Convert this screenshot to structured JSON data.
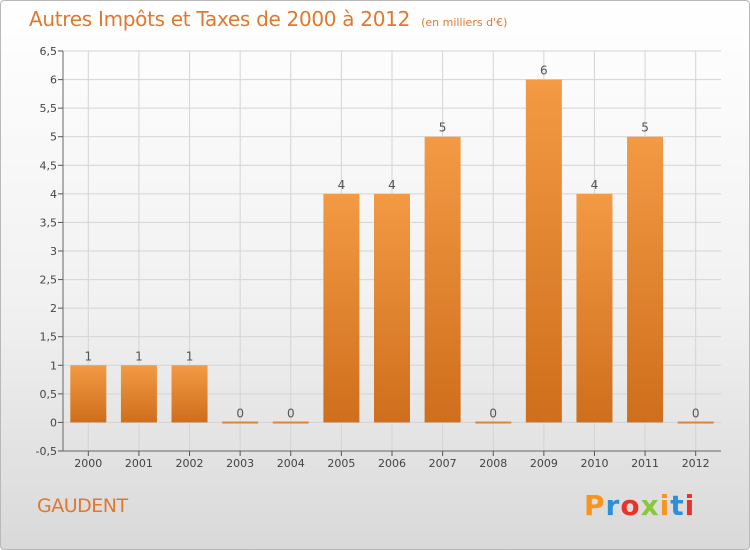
{
  "header": {
    "title": "Autres Impôts et Taxes de 2000 à 2012",
    "subtitle": "(en milliers d'€)"
  },
  "footer": {
    "commune": "GAUDENT",
    "logo_text": "Proxiti",
    "logo_colors": [
      "#f7941d",
      "#2e8fd6",
      "#e8332a",
      "#8cc63f",
      "#f7941d",
      "#2e8fd6",
      "#e8332a"
    ]
  },
  "chart_data": {
    "type": "bar",
    "categories": [
      "2000",
      "2001",
      "2002",
      "2003",
      "2004",
      "2005",
      "2006",
      "2007",
      "2008",
      "2009",
      "2010",
      "2011",
      "2012"
    ],
    "values": [
      1,
      1,
      1,
      0,
      0,
      4,
      4,
      5,
      0,
      6,
      4,
      5,
      0
    ],
    "data_labels": [
      "1",
      "1",
      "1",
      "0",
      "0",
      "4",
      "4",
      "5",
      "0",
      "6",
      "4",
      "5",
      "0"
    ],
    "ylim": [
      -0.5,
      6.5
    ],
    "yticks": [
      -0.5,
      0,
      0.5,
      1,
      1.5,
      2,
      2.5,
      3,
      3.5,
      4,
      4.5,
      5,
      5.5,
      6,
      6.5
    ],
    "ytick_labels": [
      "-0,5",
      "0",
      "0,5",
      "1",
      "1,5",
      "2",
      "2,5",
      "3",
      "3,5",
      "4",
      "4,5",
      "5",
      "5,5",
      "6",
      "6,5"
    ],
    "grid": true,
    "bar_color": "#f39a45",
    "bar_color_dark": "#cf6e1c"
  }
}
